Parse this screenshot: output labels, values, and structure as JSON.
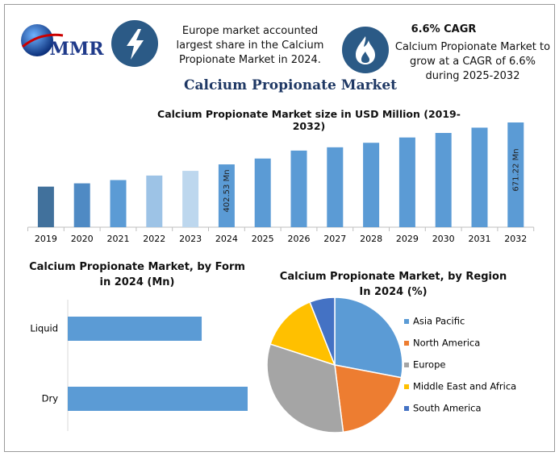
{
  "header": {
    "logo": "MMR",
    "fact": "Europe market accounted largest share in the Calcium Propionate Market in 2024.",
    "cagr_title": "6.6% CAGR",
    "cagr_text": "Calcium Propionate Market to grow at a CAGR of 6.6% during 2025-2032",
    "title": "Calcium Propionate Market"
  },
  "chart_data": [
    {
      "type": "bar",
      "title": "Calcium Propionate Market size in USD Million (2019-2032)",
      "categories": [
        "2019",
        "2020",
        "2021",
        "2022",
        "2023",
        "2024",
        "2025",
        "2026",
        "2027",
        "2028",
        "2029",
        "2030",
        "2031",
        "2032"
      ],
      "values": [
        260,
        281,
        302,
        331,
        361,
        402.53,
        440,
        491,
        512,
        541,
        575,
        604,
        638,
        671.22
      ],
      "value_labels": [
        null,
        null,
        null,
        null,
        null,
        "402.53 Mn",
        null,
        null,
        null,
        null,
        null,
        null,
        null,
        "671.22 Mn"
      ],
      "colors": [
        "#41719c",
        "#4f8ac4",
        "#5b9bd5",
        "#9dc3e6",
        "#bdd7ee",
        "#5b9bd5",
        "#5b9bd5",
        "#5b9bd5",
        "#5b9bd5",
        "#5b9bd5",
        "#5b9bd5",
        "#5b9bd5",
        "#5b9bd5",
        "#5b9bd5"
      ]
    },
    {
      "type": "barh",
      "title": "Calcium Propionate Market, by Form in 2024 (Mn)",
      "categories": [
        "Liquid",
        "Dry"
      ],
      "values": [
        172,
        231
      ],
      "color": "#5b9bd5"
    },
    {
      "type": "pie",
      "title": "Calcium Propionate Market, by Region In 2024 (%)",
      "categories": [
        "Asia Pacific",
        "North America",
        "Europe",
        "Middle East and Africa",
        "South America"
      ],
      "values": [
        28,
        20,
        32,
        14,
        6
      ],
      "colors": [
        "#5b9bd5",
        "#ed7d31",
        "#a5a5a5",
        "#ffc000",
        "#4472c4"
      ],
      "legend": "right"
    }
  ]
}
